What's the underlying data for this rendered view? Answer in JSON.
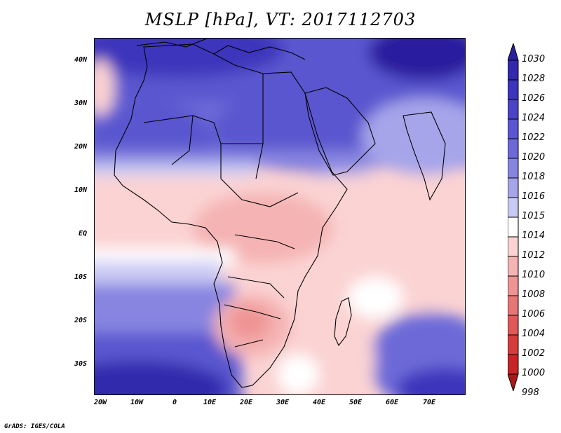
{
  "title": "MSLP [hPa], VT: 2017112703",
  "credit": "GrADS: IGES/COLA",
  "lat_labels": [
    "40N",
    "30N",
    "20N",
    "10N",
    "EQ",
    "10S",
    "20S",
    "30S"
  ],
  "lon_labels": [
    "20W",
    "10W",
    "0",
    "10E",
    "20E",
    "30E",
    "40E",
    "50E",
    "60E",
    "70E"
  ],
  "legend": {
    "levels": [
      "1030",
      "1028",
      "1026",
      "1024",
      "1022",
      "1020",
      "1018",
      "1016",
      "1015",
      "1014",
      "1012",
      "1010",
      "1008",
      "1006",
      "1004",
      "1002",
      "1000",
      "998"
    ],
    "colors": [
      "#2a1f9e",
      "#3329ad",
      "#3d35bb",
      "#4a44c6",
      "#5a56cf",
      "#6d6ad8",
      "#8785e0",
      "#a6a5ea",
      "#cacbf4",
      "#ffffff",
      "#fbd3d3",
      "#f5b3b3",
      "#ef9494",
      "#e77676",
      "#e05858",
      "#d63c3c",
      "#c62525",
      "#aa1818"
    ]
  },
  "map": {
    "projection": "lat-lon",
    "lon_range": [
      -22,
      80
    ],
    "lat_range": [
      -37,
      45
    ]
  }
}
